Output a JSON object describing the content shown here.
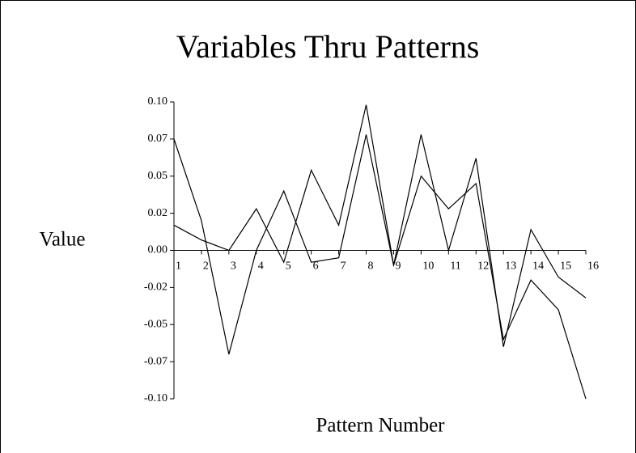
{
  "chart_data": {
    "type": "line",
    "title": "Variables Thru Patterns",
    "x_label": "Pattern Number",
    "y_label": "Value",
    "x": [
      1,
      2,
      3,
      4,
      5,
      6,
      7,
      8,
      9,
      10,
      11,
      12,
      13,
      14,
      15,
      16
    ],
    "xlim": [
      1,
      16
    ],
    "xticks": [
      1,
      2,
      3,
      4,
      5,
      6,
      7,
      8,
      9,
      10,
      11,
      12,
      13,
      14,
      15,
      16
    ],
    "ylim": [
      -0.1,
      0.1
    ],
    "yticks": [
      {
        "value": 0.1,
        "label": "0.10"
      },
      {
        "value": 0.075,
        "label": "0.07"
      },
      {
        "value": 0.05,
        "label": "0.05"
      },
      {
        "value": 0.025,
        "label": "0.02"
      },
      {
        "value": 0,
        "label": "0.00"
      },
      {
        "value": -0.025,
        "label": "-0.02"
      },
      {
        "value": -0.05,
        "label": "-0.05"
      },
      {
        "value": -0.075,
        "label": "-0.07"
      },
      {
        "value": -0.1,
        "label": "-0.10"
      }
    ],
    "grid": false,
    "series": [
      {
        "color": "#000000",
        "values": [
          0.075,
          0.02,
          -0.07,
          0.0,
          0.04,
          -0.008,
          -0.005,
          0.078,
          -0.01,
          0.05,
          0.028,
          0.045,
          -0.06,
          -0.02,
          -0.04,
          -0.1
        ]
      },
      {
        "color": "#000000",
        "values": [
          0.017,
          0.007,
          0.0,
          0.028,
          -0.008,
          0.054,
          0.017,
          0.098,
          -0.01,
          0.078,
          0.0,
          0.062,
          -0.065,
          0.014,
          -0.018,
          -0.032
        ]
      }
    ]
  }
}
